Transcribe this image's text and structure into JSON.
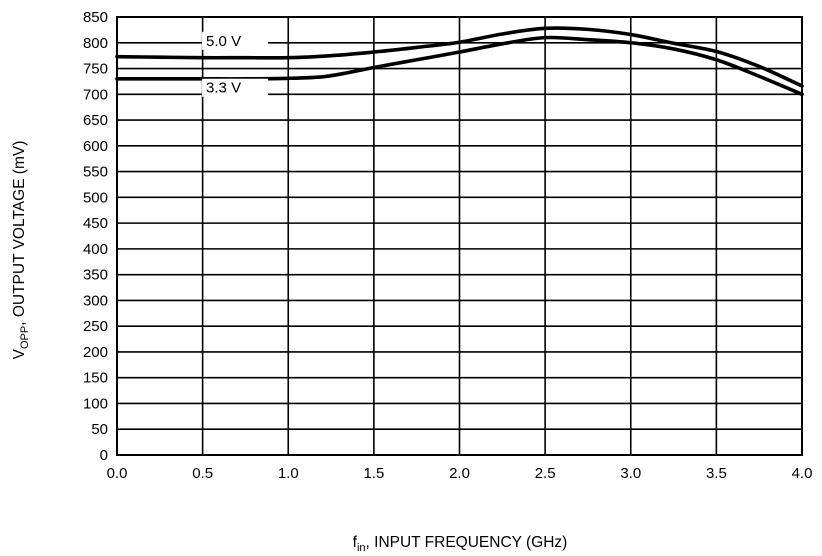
{
  "chart_data": {
    "type": "line",
    "title": "",
    "xlabel": {
      "prefix": "f",
      "sub": "in",
      "rest": ", INPUT FREQUENCY (GHz)"
    },
    "ylabel": {
      "prefix": "V",
      "sub": "OPP",
      "rest": ", OUTPUT VOLTAGE (mV)"
    },
    "xlim": [
      0,
      4.0
    ],
    "ylim": [
      0,
      850
    ],
    "x_ticks": [
      0,
      0.5,
      1.0,
      1.5,
      2.0,
      2.5,
      3.0,
      3.5,
      4.0
    ],
    "x_tick_labels": [
      "0.0",
      "0.5",
      "1.0",
      "1.5",
      "2.0",
      "2.5",
      "3.0",
      "3.5",
      "4.0"
    ],
    "y_ticks": [
      0,
      50,
      100,
      150,
      200,
      250,
      300,
      350,
      400,
      450,
      500,
      550,
      600,
      650,
      700,
      750,
      800,
      850
    ],
    "y_tick_labels": [
      "0",
      "50",
      "100",
      "150",
      "200",
      "250",
      "300",
      "350",
      "400",
      "450",
      "500",
      "550",
      "600",
      "650",
      "700",
      "750",
      "800",
      "850"
    ],
    "grid": true,
    "series": [
      {
        "name": "5.0 V",
        "color": "#000000",
        "x": [
          0,
          0.25,
          0.5,
          0.75,
          1.0,
          1.25,
          1.5,
          1.75,
          2.0,
          2.25,
          2.5,
          2.75,
          3.0,
          3.25,
          3.5,
          3.75,
          4.0
        ],
        "y": [
          773,
          772,
          771,
          771,
          771,
          775,
          782,
          791,
          801,
          817,
          828,
          826,
          816,
          799,
          783,
          754,
          716
        ]
      },
      {
        "name": "3.3 V",
        "color": "#000000",
        "x": [
          0,
          0.25,
          0.5,
          0.75,
          1.0,
          1.2,
          1.35,
          1.5,
          1.75,
          2.0,
          2.25,
          2.5,
          2.75,
          3.0,
          3.25,
          3.5,
          3.75,
          4.0
        ],
        "y": [
          730,
          730,
          730,
          730,
          731,
          734,
          742,
          752,
          767,
          782,
          798,
          810,
          806,
          800,
          788,
          767,
          735,
          700
        ]
      }
    ]
  }
}
